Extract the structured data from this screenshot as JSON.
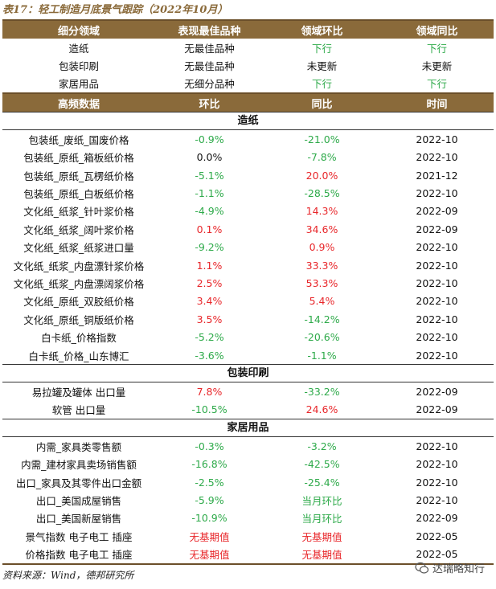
{
  "title": "表17：轻工制造月底景气跟踪（2022年10月）",
  "header1": [
    "细分领域",
    "表现最佳品种",
    "领域环比",
    "领域同比"
  ],
  "summary": [
    {
      "a": "造纸",
      "b": "无最佳品种",
      "c": "下行",
      "d": "下行",
      "cc": "green",
      "dc": "green"
    },
    {
      "a": "包装印刷",
      "b": "无最佳品种",
      "c": "未更新",
      "d": "未更新",
      "cc": "black",
      "dc": "black"
    },
    {
      "a": "家居用品",
      "b": "无细分品种",
      "c": "下行",
      "d": "下行",
      "cc": "green",
      "dc": "green"
    }
  ],
  "header2": [
    "高频数据",
    "环比",
    "同比",
    "时间"
  ],
  "sections": [
    {
      "name": "造纸",
      "rows": [
        {
          "a": "包装纸_废纸_国废价格",
          "b": "-0.9%",
          "c": "-21.0%",
          "d": "2022-10",
          "bc": "green",
          "cc": "green"
        },
        {
          "a": "包装纸_原纸_箱板纸价格",
          "b": "0.0%",
          "c": "-7.8%",
          "d": "2022-10",
          "bc": "black",
          "cc": "green"
        },
        {
          "a": "包装纸_原纸_瓦楞纸价格",
          "b": "-5.1%",
          "c": "20.0%",
          "d": "2021-12",
          "bc": "green",
          "cc": "red"
        },
        {
          "a": "包装纸_原纸_白板纸价格",
          "b": "-1.1%",
          "c": "-28.5%",
          "d": "2022-10",
          "bc": "green",
          "cc": "green"
        },
        {
          "a": "文化纸_纸浆_针叶浆价格",
          "b": "-4.9%",
          "c": "14.3%",
          "d": "2022-09",
          "bc": "green",
          "cc": "red"
        },
        {
          "a": "文化纸_纸浆_阔叶浆价格",
          "b": "0.1%",
          "c": "34.6%",
          "d": "2022-09",
          "bc": "red",
          "cc": "red"
        },
        {
          "a": "文化纸_纸浆_纸浆进口量",
          "b": "-9.2%",
          "c": "0.9%",
          "d": "2022-10",
          "bc": "green",
          "cc": "red"
        },
        {
          "a": "文化纸_纸浆_内盘漂针浆价格",
          "b": "1.1%",
          "c": "33.3%",
          "d": "2022-10",
          "bc": "red",
          "cc": "red"
        },
        {
          "a": "文化纸_纸浆_内盘漂阔浆价格",
          "b": "2.5%",
          "c": "53.3%",
          "d": "2022-10",
          "bc": "red",
          "cc": "red"
        },
        {
          "a": "文化纸_原纸_双胶纸价格",
          "b": "3.4%",
          "c": "5.4%",
          "d": "2022-10",
          "bc": "red",
          "cc": "red"
        },
        {
          "a": "文化纸_原纸_铜版纸价格",
          "b": "3.5%",
          "c": "-14.2%",
          "d": "2022-10",
          "bc": "red",
          "cc": "green"
        },
        {
          "a": "白卡纸_价格指数",
          "b": "-5.2%",
          "c": "-20.6%",
          "d": "2022-10",
          "bc": "green",
          "cc": "green"
        },
        {
          "a": "白卡纸_价格_山东博汇",
          "b": "-3.6%",
          "c": "-1.1%",
          "d": "2022-10",
          "bc": "green",
          "cc": "green"
        }
      ]
    },
    {
      "name": "包装印刷",
      "rows": [
        {
          "a": "易拉罐及罐体 出口量",
          "b": "7.8%",
          "c": "-33.2%",
          "d": "2022-09",
          "bc": "red",
          "cc": "green"
        },
        {
          "a": "软管 出口量",
          "b": "-10.5%",
          "c": "24.6%",
          "d": "2022-09",
          "bc": "green",
          "cc": "red"
        }
      ]
    },
    {
      "name": "家居用品",
      "rows": [
        {
          "a": "内需_家具类零售额",
          "b": "-0.3%",
          "c": "-3.2%",
          "d": "2022-10",
          "bc": "green",
          "cc": "green"
        },
        {
          "a": "内需_建材家具卖场销售额",
          "b": "-16.8%",
          "c": "-42.5%",
          "d": "2022-10",
          "bc": "green",
          "cc": "green"
        },
        {
          "a": "出口_家具及其零件出口金额",
          "b": "-2.5%",
          "c": "-25.4%",
          "d": "2022-10",
          "bc": "green",
          "cc": "green"
        },
        {
          "a": "出口_美国成屋销售",
          "b": "-5.9%",
          "c": "当月环比",
          "d": "2022-10",
          "bc": "green",
          "cc": "green"
        },
        {
          "a": "出口_美国新屋销售",
          "b": "-10.9%",
          "c": "当月环比",
          "d": "2022-09",
          "bc": "green",
          "cc": "green"
        },
        {
          "a": "景气指数 电子电工 插座",
          "b": "无基期值",
          "c": "无基期值",
          "d": "2022-05",
          "bc": "red",
          "cc": "red"
        },
        {
          "a": "价格指数 电子电工 插座",
          "b": "无基期值",
          "c": "无基期值",
          "d": "2022-05",
          "bc": "red",
          "cc": "red"
        }
      ]
    }
  ],
  "source": "资料来源：Wind，德邦研究所",
  "watermark": "达瑞略知行"
}
